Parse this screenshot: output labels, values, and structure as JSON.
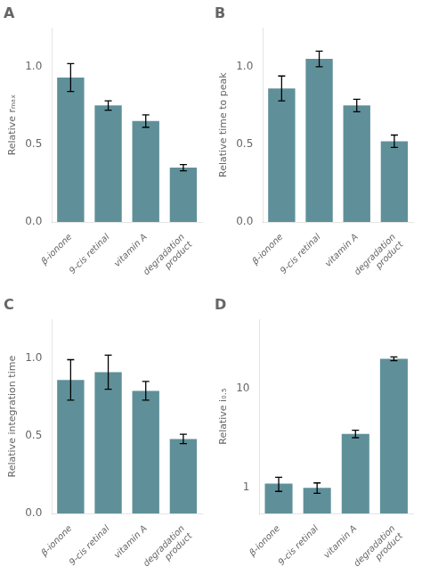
{
  "chart_data": [
    {
      "type": "bar",
      "title": "A",
      "categories": [
        "β-ionone",
        "9-cis retinal",
        "vitamin A",
        "degradation\nproduct"
      ],
      "values": [
        0.93,
        0.75,
        0.65,
        0.35
      ],
      "errors": [
        0.09,
        0.03,
        0.04,
        0.02
      ],
      "color": "#5f909a",
      "y_label": "Relative rₘₐₓ",
      "ylim": [
        0,
        1.25
      ],
      "yticks": [
        {
          "value": 0,
          "label": "0.0"
        },
        0.5,
        {
          "value": 1,
          "label": "1.0"
        }
      ],
      "grid": false
    },
    {
      "type": "bar",
      "title": "B",
      "categories": [
        "β-ionone",
        "9-cis retinal",
        "vitamin A",
        "degradation\nproduct"
      ],
      "values": [
        0.86,
        1.05,
        0.75,
        0.52
      ],
      "errors": [
        0.08,
        0.05,
        0.04,
        0.04
      ],
      "color": "#5f909a",
      "y_label": "Relative time to peak",
      "ylim": [
        0,
        1.25
      ],
      "yticks": [
        {
          "value": 0,
          "label": "0.0"
        },
        0.5,
        {
          "value": 1,
          "label": "1.0"
        }
      ],
      "grid": false
    },
    {
      "type": "bar",
      "title": "C",
      "categories": [
        "β-ionone",
        "9-cis retinal",
        "vitamin A",
        "degradation\nproduct"
      ],
      "values": [
        0.86,
        0.91,
        0.79,
        0.48
      ],
      "errors": [
        0.13,
        0.11,
        0.06,
        0.03
      ],
      "color": "#5f909a",
      "y_label": "Relative integration time",
      "ylim": [
        0,
        1.25
      ],
      "yticks": [
        {
          "value": 0,
          "label": "0.0"
        },
        0.5,
        {
          "value": 1,
          "label": "1.0"
        }
      ],
      "grid": false
    },
    {
      "type": "bar",
      "title": "D",
      "categories": [
        "β-ionone",
        "9-cis retinal",
        "vitamin A",
        "degradation\nproduct"
      ],
      "values": [
        1.1,
        1.0,
        3.5,
        20.0
      ],
      "errors": [
        0.18,
        0.12,
        0.3,
        0.9
      ],
      "color": "#5f909a",
      "y_label": "Relative i₀.₅",
      "ylim": [
        0.55,
        50
      ],
      "yticks": [
        1,
        10
      ],
      "log": "y",
      "grid": false
    }
  ]
}
